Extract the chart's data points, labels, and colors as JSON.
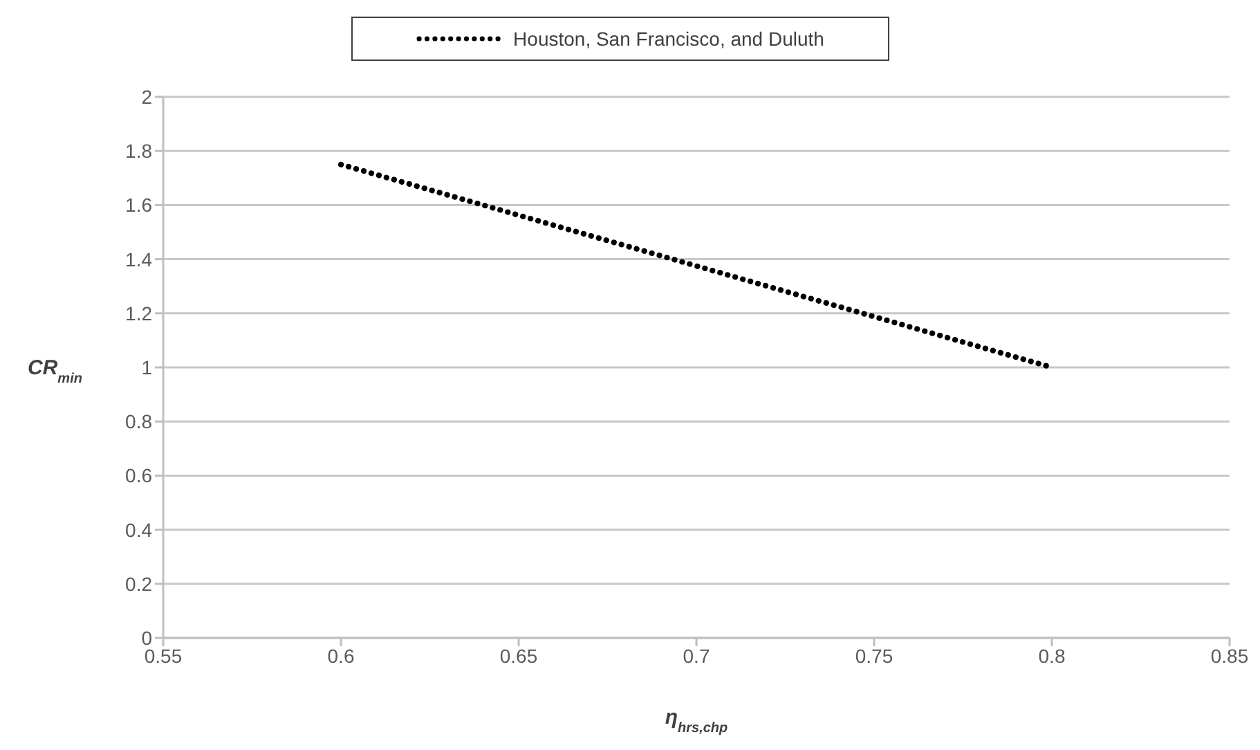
{
  "chart_data": {
    "type": "line",
    "xlabel": "η$_{hrs,chp}$",
    "ylabel": "CR$_{min}$",
    "x": [
      0.6,
      0.8
    ],
    "series": [
      {
        "name": "Houston, San Francisco, and Duluth",
        "color": "#000000",
        "values": [
          1.75,
          1.0
        ]
      }
    ],
    "xlim": [
      0.55,
      0.85
    ],
    "xticks": [
      0.55,
      0.6,
      0.65,
      0.7,
      0.75,
      0.8,
      0.85
    ],
    "ylim": [
      0,
      2
    ],
    "yticks": [
      0,
      0.2,
      0.4,
      0.6,
      0.8,
      1,
      1.2,
      1.4,
      1.6,
      1.8,
      2
    ],
    "grid": "y",
    "legend": "top",
    "marker": "none",
    "line_style": "dotted"
  }
}
